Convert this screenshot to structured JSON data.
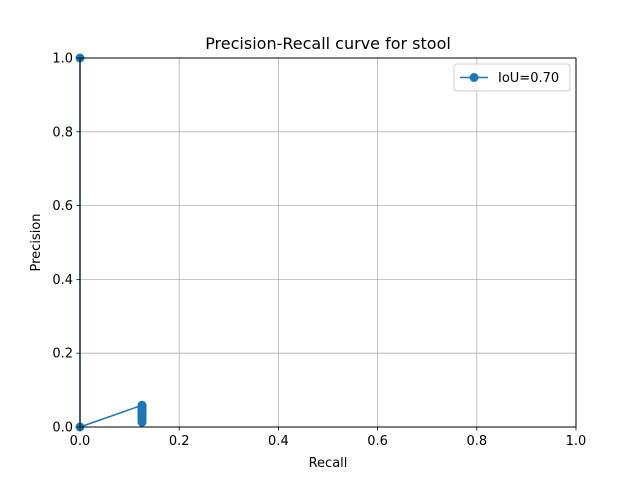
{
  "chart_data": {
    "type": "line",
    "title": "Precision-Recall curve for stool",
    "xlabel": "Recall",
    "ylabel": "Precision",
    "xlim": [
      0.0,
      1.0
    ],
    "ylim": [
      0.0,
      1.0
    ],
    "xticks": [
      0.0,
      0.2,
      0.4,
      0.6,
      0.8,
      1.0
    ],
    "yticks": [
      0.0,
      0.2,
      0.4,
      0.6,
      0.8,
      1.0
    ],
    "xtick_labels": [
      "0.0",
      "0.2",
      "0.4",
      "0.6",
      "0.8",
      "1.0"
    ],
    "ytick_labels": [
      "0.0",
      "0.2",
      "0.4",
      "0.6",
      "0.8",
      "1.0"
    ],
    "grid": true,
    "legend_position": "top-right",
    "series": [
      {
        "name": "IoU=0.70",
        "color": "#1f77b4",
        "marker": "circle",
        "x": [
          0.0,
          0.0,
          0.125,
          0.125,
          0.125,
          0.125,
          0.125,
          0.125,
          0.125,
          0.125,
          0.125,
          0.125,
          0.125,
          0.125,
          0.125,
          0.125,
          0.125
        ],
        "y": [
          1.0,
          0.0,
          0.059,
          0.054,
          0.05,
          0.046,
          0.043,
          0.04,
          0.037,
          0.034,
          0.031,
          0.028,
          0.025,
          0.022,
          0.019,
          0.016,
          0.013
        ]
      }
    ]
  }
}
